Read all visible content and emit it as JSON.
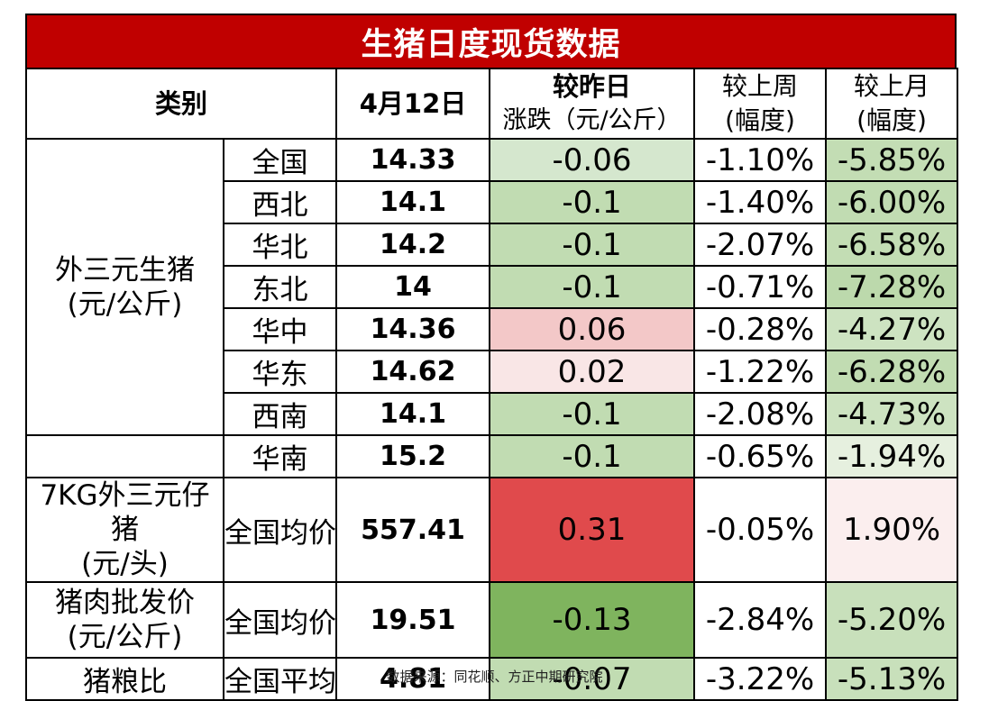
{
  "title": "生猪日度现货数据",
  "header": {
    "category": "类别",
    "date": "4月12日",
    "change_line1": "较昨日",
    "change_line2": "涨跌（元/公斤）",
    "wow_line1": "较上周",
    "wow_line2": "(幅度)",
    "mom_line1": "较上月",
    "mom_line2": "(幅度)"
  },
  "groups": {
    "hog_line1": "外三元生猪",
    "hog_line2": "(元/公斤)",
    "piglet_line1": "7KG外三元仔猪",
    "piglet_line2": "(元/头)",
    "pork_line1": "猪肉批发价",
    "pork_line2": "(元/公斤)",
    "ratio": "猪粮比"
  },
  "rows": [
    {
      "region": "全国",
      "price": "14.33",
      "change": "-0.06",
      "wow": "-1.10%",
      "mom": "-5.85%"
    },
    {
      "region": "西北",
      "price": "14.1",
      "change": "-0.1",
      "wow": "-1.40%",
      "mom": "-6.00%"
    },
    {
      "region": "华北",
      "price": "14.2",
      "change": "-0.1",
      "wow": "-2.07%",
      "mom": "-6.58%"
    },
    {
      "region": "东北",
      "price": "14",
      "change": "-0.1",
      "wow": "-0.71%",
      "mom": "-7.28%"
    },
    {
      "region": "华中",
      "price": "14.36",
      "change": "0.06",
      "wow": "-0.28%",
      "mom": "-4.27%"
    },
    {
      "region": "华东",
      "price": "14.62",
      "change": "0.02",
      "wow": "-1.22%",
      "mom": "-6.28%"
    },
    {
      "region": "西南",
      "price": "14.1",
      "change": "-0.1",
      "wow": "-2.08%",
      "mom": "-4.73%"
    },
    {
      "region": "华南",
      "price": "15.2",
      "change": "-0.1",
      "wow": "-0.65%",
      "mom": "-1.94%"
    },
    {
      "region": "全国均价",
      "price": "557.41",
      "change": "0.31",
      "wow": "-0.05%",
      "mom": "1.90%"
    },
    {
      "region": "全国均价",
      "price": "19.51",
      "change": "-0.13",
      "wow": "-2.84%",
      "mom": "-5.20%"
    },
    {
      "region": "全国平均",
      "price": "4.81",
      "change": "-0.07",
      "wow": "-3.22%",
      "mom": "-5.13%"
    }
  ],
  "colors": {
    "title_bg": "#c00000",
    "change_fill": [
      "#d5e7ce",
      "#c1dcb2",
      "#c1dcb2",
      "#c1dcb2",
      "#f3c8c8",
      "#f9e6e6",
      "#c1dcb2",
      "#c1dcb2",
      "#e04a4c",
      "#7fb45e",
      "#c1dcb2"
    ],
    "wow_fill": [
      "#ffffff",
      "#ffffff",
      "#ffffff",
      "#ffffff",
      "#ffffff",
      "#ffffff",
      "#ffffff",
      "#ffffff",
      "#ffffff",
      "#ffffff",
      "#ffffff"
    ],
    "mom_fill": [
      "#c3ddb4",
      "#c1dcb2",
      "#c3ddb4",
      "#bcd9ac",
      "#cde3c1",
      "#c1dcb2",
      "#cde3c1",
      "#e6f0df",
      "#fbeeee",
      "#c8e0bb",
      "#c8e0bb"
    ]
  },
  "source": "数据来源：同花顺、方正中期研究院"
}
